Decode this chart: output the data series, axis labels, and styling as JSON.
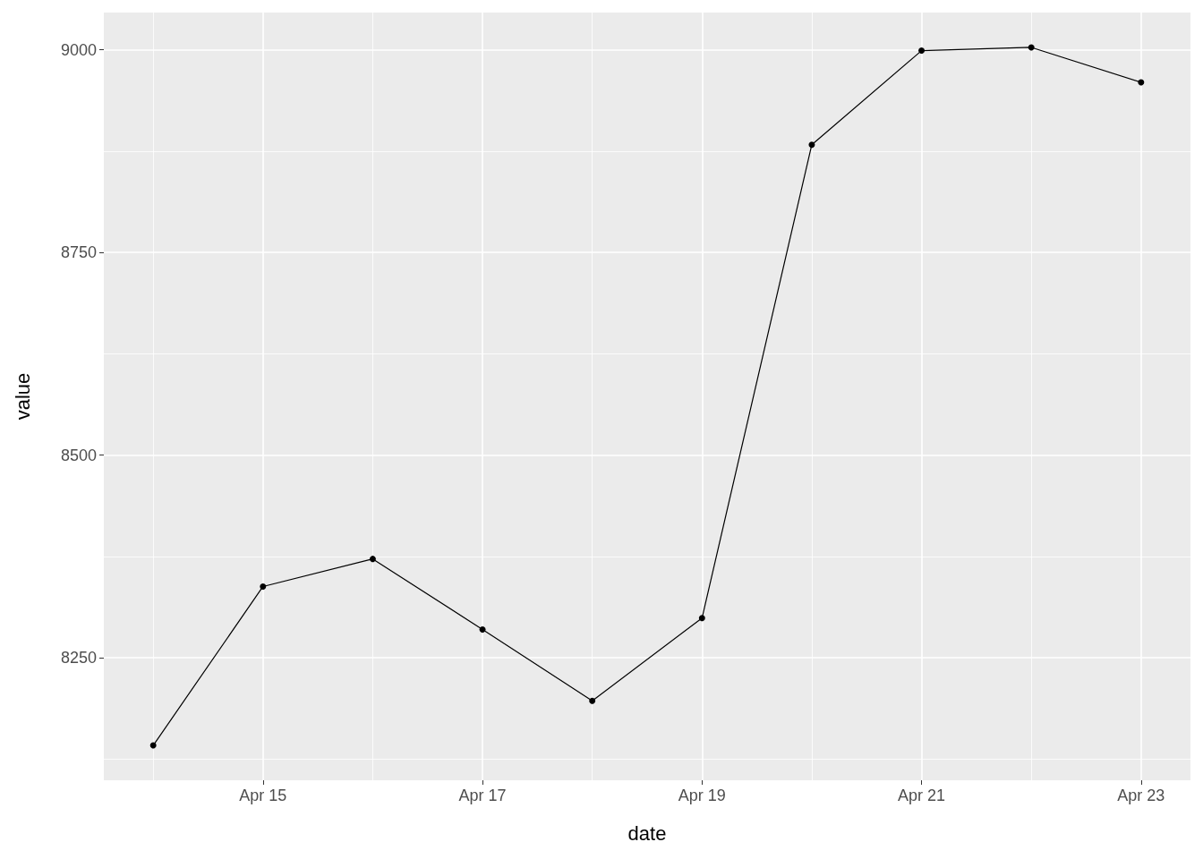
{
  "chart_data": {
    "type": "line",
    "xlabel": "date",
    "ylabel": "value",
    "x": [
      "--04-14",
      "--04-15",
      "--04-16",
      "--04-17",
      "--04-18",
      "--04-19",
      "--04-20",
      "--04-21",
      "--04-22",
      "--04-23"
    ],
    "series": [
      {
        "color": "#000000",
        "values": [
          8142,
          8338,
          8372,
          8285,
          8197,
          8299,
          8883,
          8999,
          9003,
          8960
        ]
      }
    ],
    "xlim": [
      "--04-13T13:12",
      "--04-23T10:48"
    ],
    "xticks": [
      {
        "value": "--04-14",
        "label": null
      },
      {
        "value": "--04-15",
        "label": "Apr 15"
      },
      {
        "value": "--04-16",
        "label": null
      },
      {
        "value": "--04-17",
        "label": "Apr 17"
      },
      {
        "value": "--04-18",
        "label": null
      },
      {
        "value": "--04-19",
        "label": "Apr 19"
      },
      {
        "value": "--04-20",
        "label": null
      },
      {
        "value": "--04-21",
        "label": "Apr 21"
      },
      {
        "value": "--04-22",
        "label": null
      },
      {
        "value": "--04-23",
        "label": "Apr 23"
      }
    ],
    "ylim": [
      8099,
      9046
    ],
    "yticks": [
      {
        "value": 8125,
        "label": null
      },
      8250,
      {
        "value": 8375,
        "label": null
      },
      8500,
      {
        "value": 8625,
        "label": null
      },
      8750,
      {
        "value": 8875,
        "label": null
      },
      9000
    ],
    "grid": true,
    "marker": "circle",
    "line_style": "solid"
  }
}
